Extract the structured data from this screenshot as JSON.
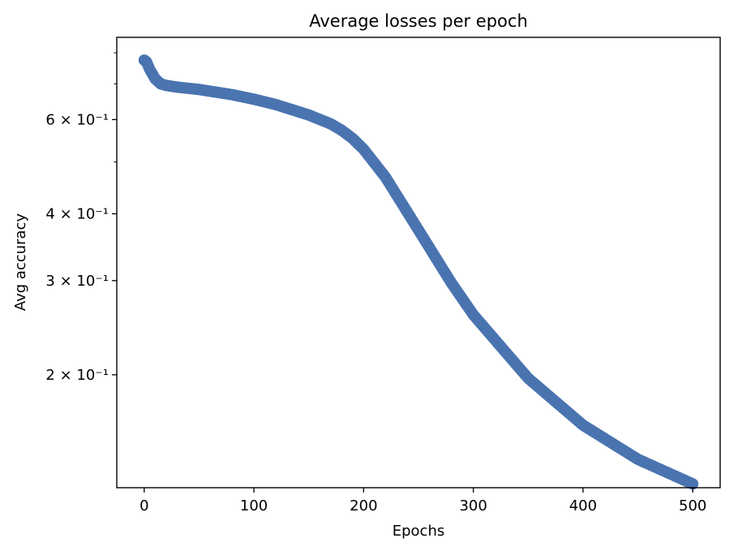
{
  "chart_data": {
    "type": "scatter",
    "title": "Average losses per epoch",
    "xlabel": "Epochs",
    "ylabel": "Avg accuracy",
    "xlim": [
      -25,
      525
    ],
    "ylim": [
      0.123,
      0.855
    ],
    "yscale": "log",
    "grid": false,
    "color": "#4a74b0",
    "x_ticks": [
      0,
      100,
      200,
      300,
      400,
      500
    ],
    "x_tick_labels": [
      "0",
      "100",
      "200",
      "300",
      "400",
      "500"
    ],
    "y_major_ticks": [
      0.2,
      0.3,
      0.4,
      0.6
    ],
    "y_major_tick_labels": [
      "2 × 10⁻¹",
      "3 × 10⁻¹",
      "4 × 10⁻¹",
      "6 × 10⁻¹"
    ],
    "y_minor_ticks": [
      0.5,
      0.7,
      0.8
    ],
    "series": [
      {
        "x": [
          0,
          2,
          5,
          10,
          15,
          20,
          30,
          50,
          80,
          100,
          120,
          150,
          170,
          180,
          190,
          200,
          220,
          250,
          280,
          300,
          350,
          400,
          450,
          500
        ],
        "y": [
          0.775,
          0.77,
          0.745,
          0.715,
          0.7,
          0.695,
          0.69,
          0.683,
          0.668,
          0.655,
          0.64,
          0.612,
          0.589,
          0.573,
          0.553,
          0.528,
          0.468,
          0.373,
          0.297,
          0.259,
          0.197,
          0.161,
          0.139,
          0.125
        ]
      }
    ]
  }
}
